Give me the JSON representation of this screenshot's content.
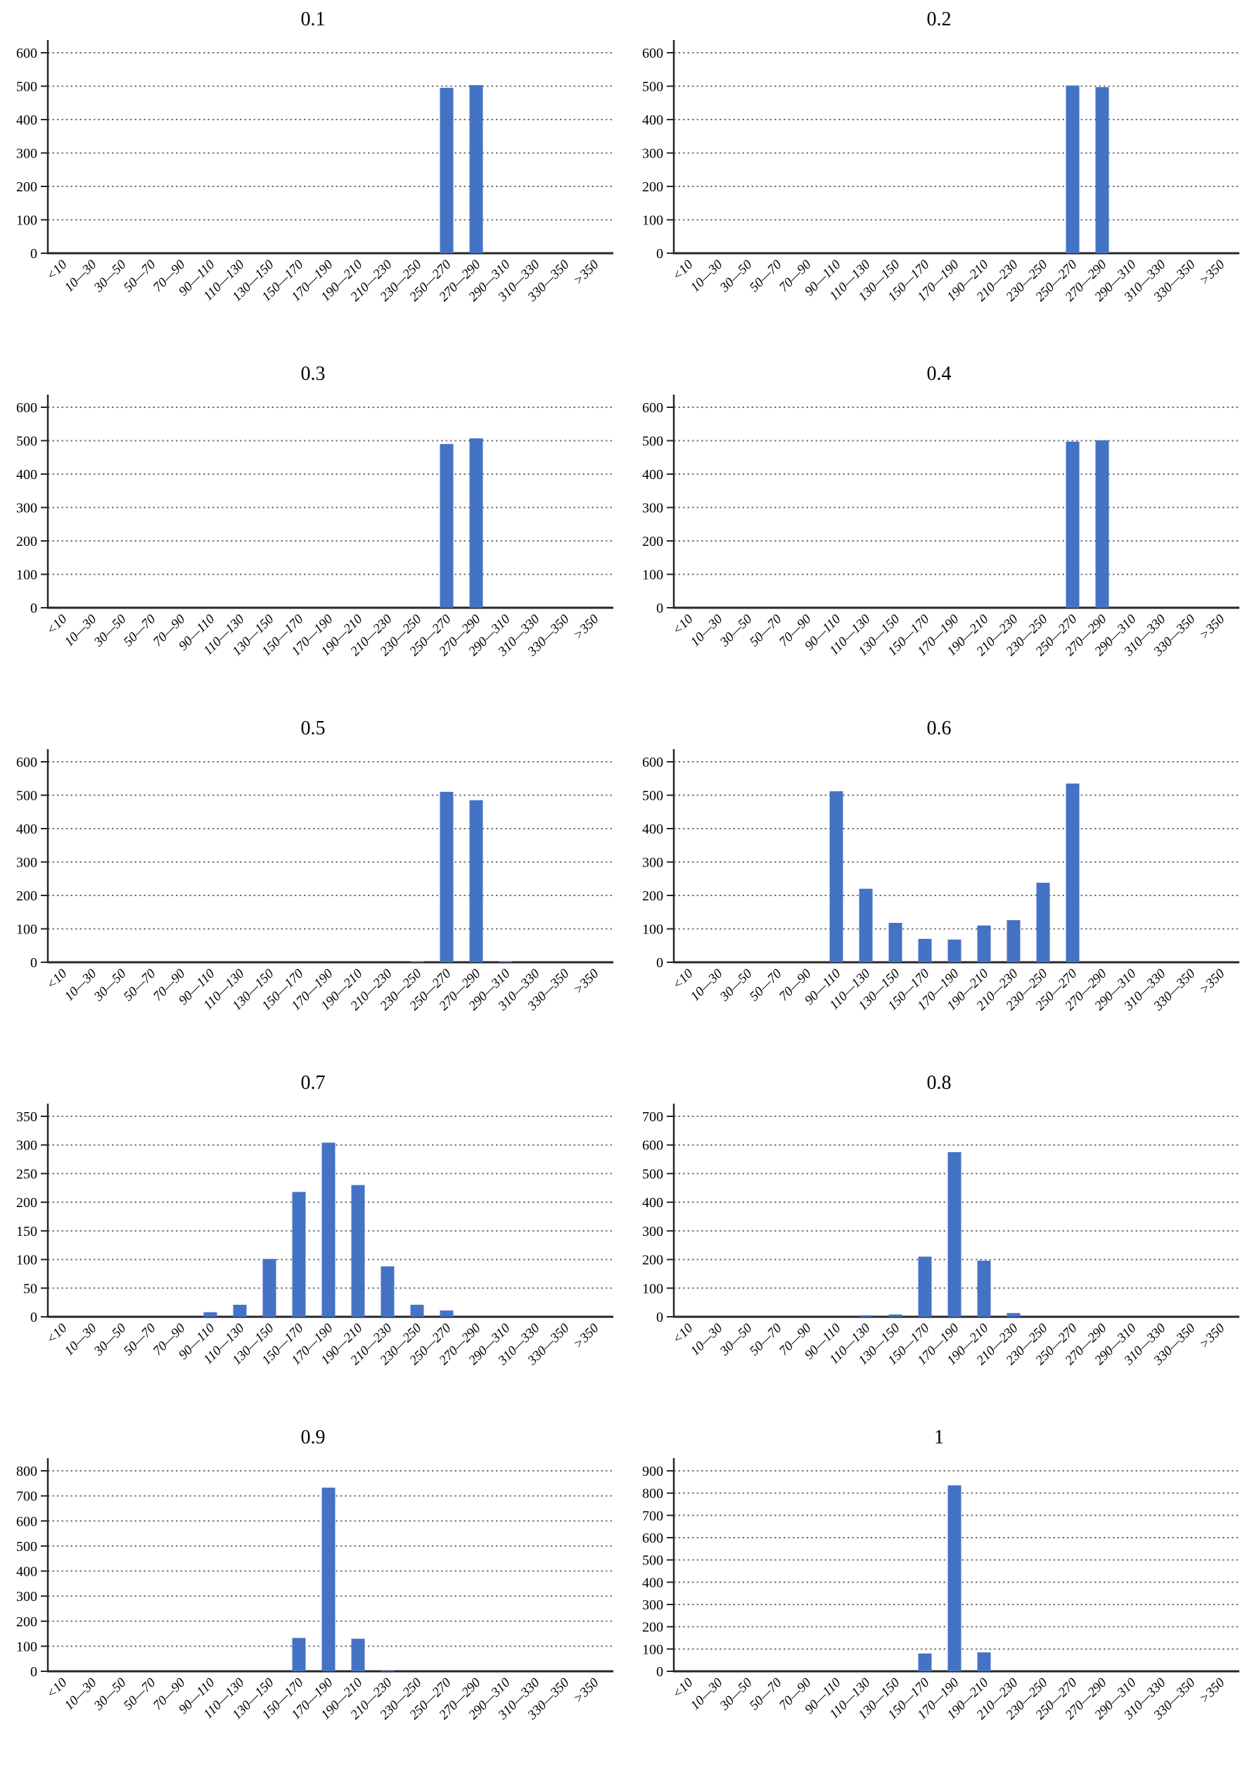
{
  "figure": {
    "description": "Grid of ten histograms titled 0.1 through 1",
    "columns": 2,
    "rows": 5
  },
  "colors": {
    "bar": "#4472C4",
    "axis": "#262626",
    "grid": "#757575",
    "text": "#000000",
    "background": "#ffffff"
  },
  "chart_data": [
    {
      "type": "bar",
      "title": "0.1",
      "categories": [
        "<10",
        "10—30",
        "30—50",
        "50—70",
        "70—90",
        "90—110",
        "110—130",
        "130—150",
        "150—170",
        "170—190",
        "190—210",
        "210—230",
        "230—250",
        "250—270",
        "270—290",
        "290—310",
        "310—330",
        "330—350",
        ">350"
      ],
      "values": [
        0,
        0,
        0,
        0,
        0,
        0,
        0,
        0,
        0,
        0,
        0,
        0,
        0,
        495,
        503,
        0,
        0,
        0,
        0
      ],
      "ylim": [
        0,
        600
      ],
      "ystep": 100,
      "xlabel": "",
      "ylabel": "",
      "grid": "horizontal-dotted",
      "legend": "none"
    },
    {
      "type": "bar",
      "title": "0.2",
      "categories": [
        "<10",
        "10—30",
        "30—50",
        "50—70",
        "70—90",
        "90—110",
        "110—130",
        "130—150",
        "150—170",
        "170—190",
        "190—210",
        "210—230",
        "230—250",
        "250—270",
        "270—290",
        "290—310",
        "310—330",
        "330—350",
        ">350"
      ],
      "values": [
        0,
        0,
        0,
        0,
        0,
        0,
        0,
        0,
        0,
        0,
        0,
        0,
        0,
        502,
        497,
        0,
        0,
        0,
        0
      ],
      "ylim": [
        0,
        600
      ],
      "ystep": 100,
      "xlabel": "",
      "ylabel": "",
      "grid": "horizontal-dotted",
      "legend": "none"
    },
    {
      "type": "bar",
      "title": "0.3",
      "categories": [
        "<10",
        "10—30",
        "30—50",
        "50—70",
        "70—90",
        "90—110",
        "110—130",
        "130—150",
        "150—170",
        "170—190",
        "190—210",
        "210—230",
        "230—250",
        "250—270",
        "270—290",
        "290—310",
        "310—330",
        "330—350",
        ">350"
      ],
      "values": [
        0,
        0,
        0,
        0,
        0,
        0,
        0,
        0,
        0,
        0,
        0,
        0,
        0,
        490,
        507,
        0,
        0,
        0,
        0
      ],
      "ylim": [
        0,
        600
      ],
      "ystep": 100,
      "xlabel": "",
      "ylabel": "",
      "grid": "horizontal-dotted",
      "legend": "none"
    },
    {
      "type": "bar",
      "title": "0.4",
      "categories": [
        "<10",
        "10—30",
        "30—50",
        "50—70",
        "70—90",
        "90—110",
        "110—130",
        "130—150",
        "150—170",
        "170—190",
        "190—210",
        "210—230",
        "230—250",
        "250—270",
        "270—290",
        "290—310",
        "310—330",
        "330—350",
        ">350"
      ],
      "values": [
        0,
        0,
        0,
        0,
        0,
        0,
        0,
        0,
        0,
        0,
        0,
        0,
        0,
        497,
        501,
        0,
        0,
        0,
        0
      ],
      "ylim": [
        0,
        600
      ],
      "ystep": 100,
      "xlabel": "",
      "ylabel": "",
      "grid": "horizontal-dotted",
      "legend": "none"
    },
    {
      "type": "bar",
      "title": "0.5",
      "categories": [
        "<10",
        "10—30",
        "30—50",
        "50—70",
        "70—90",
        "90—110",
        "110—130",
        "130—150",
        "150—170",
        "170—190",
        "190—210",
        "210—230",
        "230—250",
        "250—270",
        "270—290",
        "290—310",
        "310—330",
        "330—350",
        ">350"
      ],
      "values": [
        0,
        0,
        0,
        0,
        0,
        0,
        0,
        0,
        0,
        0,
        0,
        0,
        3,
        510,
        485,
        3,
        0,
        0,
        0
      ],
      "ylim": [
        0,
        600
      ],
      "ystep": 100,
      "xlabel": "",
      "ylabel": "",
      "grid": "horizontal-dotted",
      "legend": "none"
    },
    {
      "type": "bar",
      "title": "0.6",
      "categories": [
        "<10",
        "10—30",
        "30—50",
        "50—70",
        "70—90",
        "90—110",
        "110—130",
        "130—150",
        "150—170",
        "170—190",
        "190—210",
        "210—230",
        "230—250",
        "250—270",
        "270—290",
        "290—310",
        "310—330",
        "330—350",
        ">350"
      ],
      "values": [
        0,
        0,
        0,
        0,
        0,
        512,
        220,
        118,
        70,
        68,
        110,
        126,
        238,
        535,
        0,
        0,
        0,
        0,
        0
      ],
      "ylim": [
        0,
        600
      ],
      "ystep": 100,
      "xlabel": "",
      "ylabel": "",
      "grid": "horizontal-dotted",
      "legend": "none"
    },
    {
      "type": "bar",
      "title": "0.7",
      "categories": [
        "<10",
        "10—30",
        "30—50",
        "50—70",
        "70—90",
        "90—110",
        "110—130",
        "130—150",
        "150—170",
        "170—190",
        "190—210",
        "210—230",
        "230—250",
        "250—270",
        "270—290",
        "290—310",
        "310—330",
        "330—350",
        ">350"
      ],
      "values": [
        0,
        0,
        0,
        0,
        0,
        8,
        21,
        101,
        218,
        304,
        230,
        88,
        21,
        11,
        0,
        0,
        0,
        0,
        0
      ],
      "ylim": [
        0,
        350
      ],
      "ystep": 50,
      "xlabel": "",
      "ylabel": "",
      "grid": "horizontal-dotted",
      "legend": "none"
    },
    {
      "type": "bar",
      "title": "0.8",
      "categories": [
        "<10",
        "10—30",
        "30—50",
        "50—70",
        "70—90",
        "90—110",
        "110—130",
        "130—150",
        "150—170",
        "170—190",
        "190—210",
        "210—230",
        "230—250",
        "250—270",
        "270—290",
        "290—310",
        "310—330",
        "330—350",
        ">350"
      ],
      "values": [
        0,
        0,
        0,
        0,
        0,
        0,
        5,
        8,
        210,
        575,
        196,
        13,
        0,
        0,
        0,
        0,
        0,
        0,
        0
      ],
      "ylim": [
        0,
        700
      ],
      "ystep": 100,
      "xlabel": "",
      "ylabel": "",
      "grid": "horizontal-dotted",
      "legend": "none"
    },
    {
      "type": "bar",
      "title": "0.9",
      "categories": [
        "<10",
        "10—30",
        "30—50",
        "50—70",
        "70—90",
        "90—110",
        "110—130",
        "130—150",
        "150—170",
        "170—190",
        "190—210",
        "210—230",
        "230—250",
        "250—270",
        "270—290",
        "290—310",
        "310—330",
        "330—350",
        ">350"
      ],
      "values": [
        0,
        0,
        0,
        0,
        0,
        0,
        0,
        0,
        133,
        733,
        130,
        3,
        0,
        0,
        0,
        0,
        0,
        0,
        0
      ],
      "ylim": [
        0,
        800
      ],
      "ystep": 100,
      "xlabel": "",
      "ylabel": "",
      "grid": "horizontal-dotted",
      "legend": "none"
    },
    {
      "type": "bar",
      "title": "1",
      "categories": [
        "<10",
        "10—30",
        "30—50",
        "50—70",
        "70—90",
        "90—110",
        "110—130",
        "130—150",
        "150—170",
        "170—190",
        "190—210",
        "210—230",
        "230—250",
        "250—270",
        "270—290",
        "290—310",
        "310—330",
        "330—350",
        ">350"
      ],
      "values": [
        0,
        0,
        0,
        0,
        0,
        0,
        0,
        0,
        80,
        835,
        85,
        0,
        0,
        0,
        0,
        0,
        0,
        0,
        0
      ],
      "ylim": [
        0,
        900
      ],
      "ystep": 100,
      "xlabel": "",
      "ylabel": "",
      "grid": "horizontal-dotted",
      "legend": "none"
    }
  ]
}
